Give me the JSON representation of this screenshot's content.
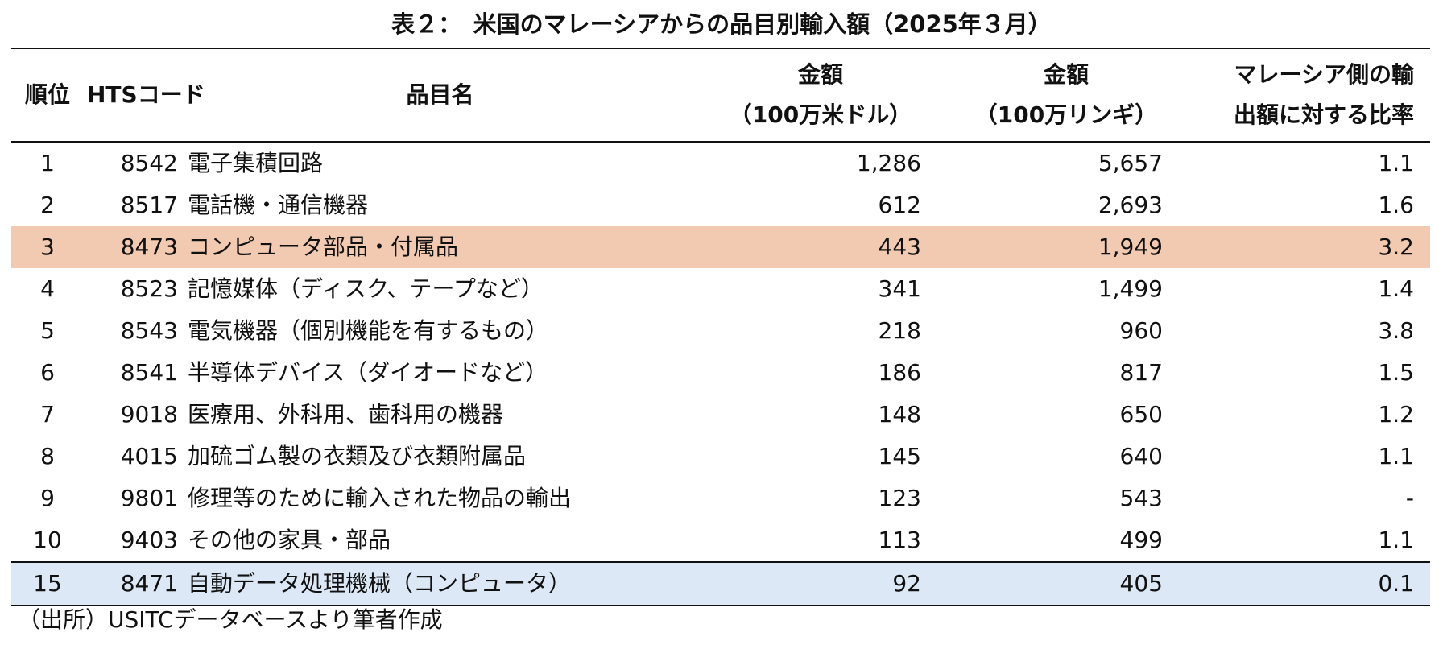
{
  "title": "表２：　米国のマレーシアからの品目別輸入額（2025年３月）",
  "headers": {
    "rank": "順位",
    "hts": "HTSコード",
    "name": "品目名",
    "usd_line1": "金額",
    "usd_line2": "（100万米ドル）",
    "myr_line1": "金額",
    "myr_line2": "（100万リンギ）",
    "ratio_line1": "マレーシア側の輸",
    "ratio_line2": "出額に対する比率"
  },
  "rows": [
    {
      "rank": "1",
      "hts": "8542",
      "name": "電子集積回路",
      "usd": "1,286",
      "myr": "5,657",
      "ratio": "1.1"
    },
    {
      "rank": "2",
      "hts": "8517",
      "name": "電話機・通信機器",
      "usd": "612",
      "myr": "2,693",
      "ratio": "1.6"
    },
    {
      "rank": "3",
      "hts": "8473",
      "name": "コンピュータ部品・付属品",
      "usd": "443",
      "myr": "1,949",
      "ratio": "3.2"
    },
    {
      "rank": "4",
      "hts": "8523",
      "name": "記憶媒体（ディスク、テープなど）",
      "usd": "341",
      "myr": "1,499",
      "ratio": "1.4"
    },
    {
      "rank": "5",
      "hts": "8543",
      "name": "電気機器（個別機能を有するもの）",
      "usd": "218",
      "myr": "960",
      "ratio": "3.8"
    },
    {
      "rank": "6",
      "hts": "8541",
      "name": "半導体デバイス（ダイオードなど）",
      "usd": "186",
      "myr": "817",
      "ratio": "1.5"
    },
    {
      "rank": "7",
      "hts": "9018",
      "name": "医療用、外科用、歯科用の機器",
      "usd": "148",
      "myr": "650",
      "ratio": "1.2"
    },
    {
      "rank": "8",
      "hts": "4015",
      "name": "加硫ゴム製の衣類及び衣類附属品",
      "usd": "145",
      "myr": "640",
      "ratio": "1.1"
    },
    {
      "rank": "9",
      "hts": "9801",
      "name": "修理等のために輸入された物品の輸出",
      "usd": "123",
      "myr": "543",
      "ratio": "-"
    },
    {
      "rank": "10",
      "hts": "9403",
      "name": "その他の家具・部品",
      "usd": "113",
      "myr": "499",
      "ratio": "1.1"
    },
    {
      "rank": "15",
      "hts": "8471",
      "name": "自動データ処理機械（コンピュータ）",
      "usd": "92",
      "myr": "405",
      "ratio": "0.1"
    }
  ],
  "source": "（出所）USITCデータベースより筆者作成",
  "colors": {
    "highlight_orange": "#f2c9b1",
    "highlight_blue": "#dce8f5"
  }
}
